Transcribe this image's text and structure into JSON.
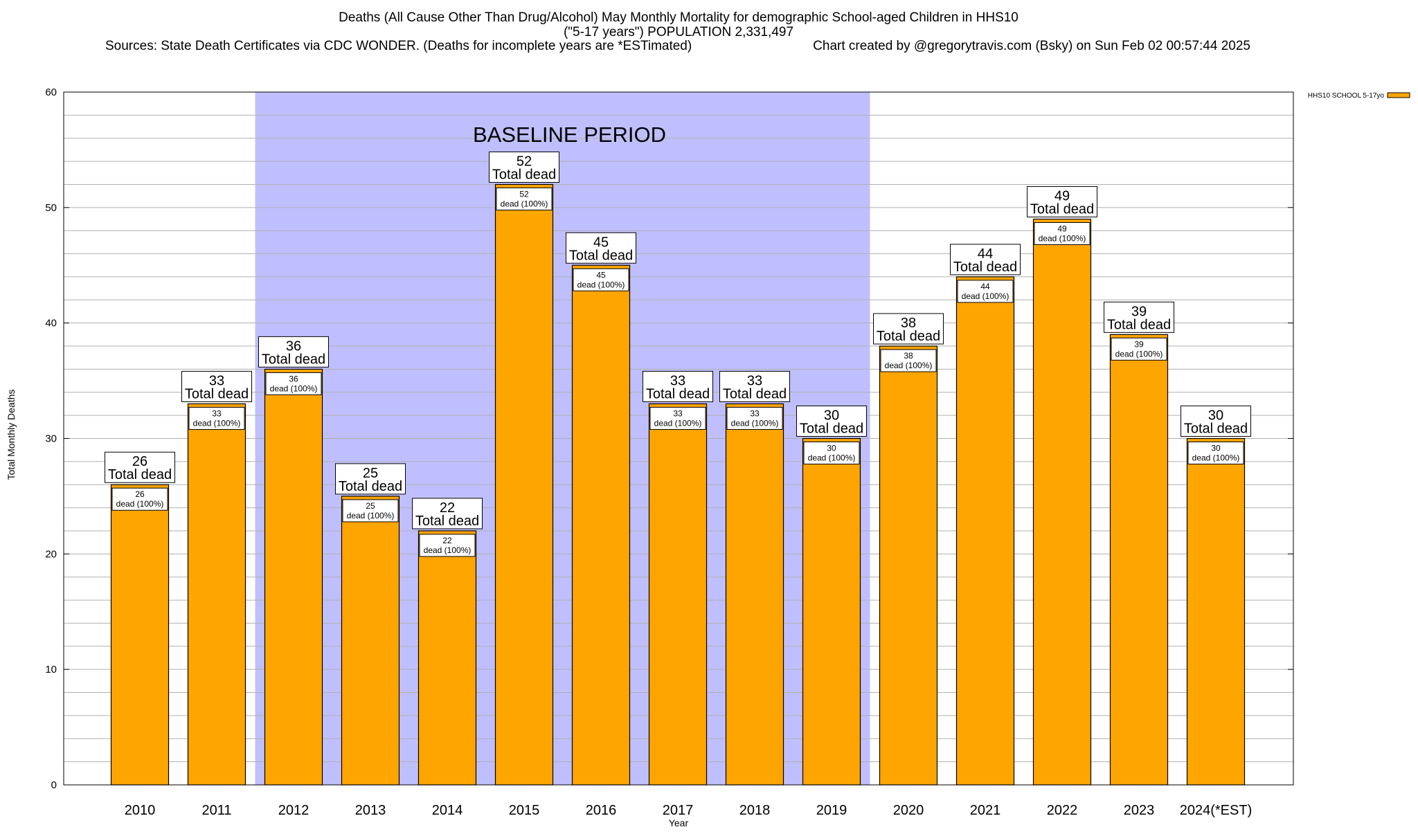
{
  "chart_data": {
    "type": "bar",
    "title_lines": [
      "Deaths (All Cause Other Than Drug/Alcohol) May Monthly Mortality for demographic School-aged Children in HHS10",
      "(\"5-17 years\") POPULATION 2,331,497"
    ],
    "sources_text": "Sources: State Death Certificates via CDC WONDER. (Deaths for incomplete years are *ESTimated)",
    "credit_text": "Chart created by @gregorytravis.com (Bsky) on Sun Feb 02 00:57:44 2025",
    "xlabel": "Year",
    "ylabel": "Total Monthly Deaths",
    "ylim": [
      0,
      60
    ],
    "y_major_ticks": [
      0,
      10,
      20,
      30,
      40,
      50,
      60
    ],
    "y_minor_step": 2,
    "grid": true,
    "legend": {
      "position": "top-right",
      "entries": [
        {
          "name": "HHS10 SCHOOL 5-17yo",
          "color": "#FFA500"
        }
      ]
    },
    "categories": [
      "2010",
      "2011",
      "2012",
      "2013",
      "2014",
      "2015",
      "2016",
      "2017",
      "2018",
      "2019",
      "2020",
      "2021",
      "2022",
      "2023",
      "2024(*EST)"
    ],
    "series": [
      {
        "name": "HHS10 SCHOOL 5-17yo",
        "values": [
          26,
          33,
          36,
          25,
          22,
          52,
          45,
          33,
          33,
          30,
          38,
          44,
          49,
          39,
          30
        ],
        "color": "#FFA500"
      }
    ],
    "total_label_suffix": "Total dead",
    "inner_label_suffix": "dead (100%)",
    "baseline_period": {
      "label": "BASELINE PERIOD",
      "start_category": "2012",
      "end_category": "2019",
      "color": "#BFBFFF"
    }
  }
}
